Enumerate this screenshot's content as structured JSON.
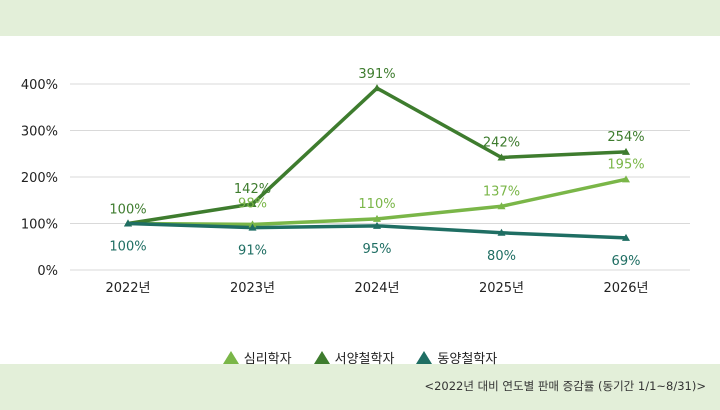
{
  "chart_data": {
    "type": "line",
    "categories": [
      "2022년",
      "2023년",
      "2024년",
      "2025년",
      "2026년"
    ],
    "ylim": [
      0,
      400
    ],
    "yticks": [
      0,
      100,
      200,
      300,
      400
    ],
    "ytick_labels": [
      "0%",
      "100%",
      "200%",
      "300%",
      "400%"
    ],
    "grid": true,
    "legend_position": "bottom",
    "series": [
      {
        "name": "심리학자",
        "values": [
          100,
          98,
          110,
          137,
          195
        ],
        "labels": [
          "100%",
          "98%",
          "110%",
          "137%",
          "195%"
        ],
        "color": "#7ab648"
      },
      {
        "name": "서양철학자",
        "values": [
          100,
          142,
          391,
          242,
          254
        ],
        "labels": [
          "100%",
          "142%",
          "391%",
          "242%",
          "254%"
        ],
        "color": "#3e7c2e"
      },
      {
        "name": "동양철학자",
        "values": [
          100,
          91,
          95,
          80,
          69
        ],
        "labels": [
          "100%",
          "91%",
          "95%",
          "80%",
          "69%"
        ],
        "color": "#1f6e63"
      }
    ]
  },
  "caption": "<2022년 대비 연도별 판매 증감률 (동기간 1/1~8/31)>"
}
